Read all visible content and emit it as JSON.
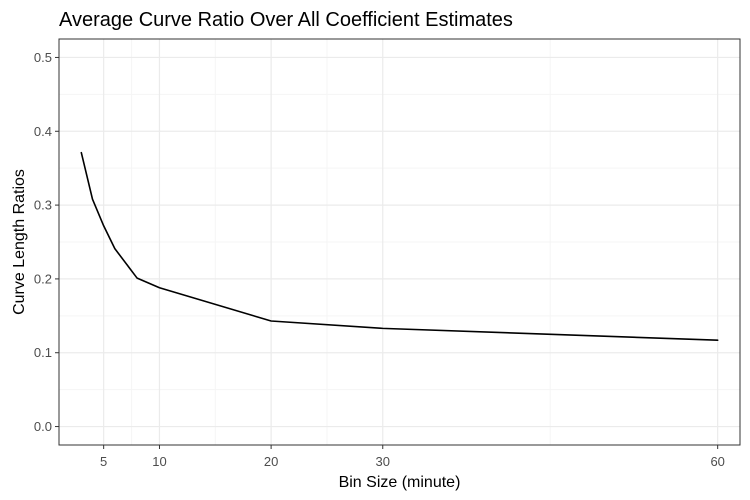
{
  "chart_data": {
    "type": "line",
    "title": "Average Curve Ratio Over All Coefficient Estimates",
    "xlabel": "Bin Size (minute)",
    "ylabel": "Curve Length Ratios",
    "xlim": [
      1,
      62
    ],
    "ylim": [
      -0.025,
      0.525
    ],
    "x_ticks": [
      5,
      10,
      20,
      30,
      60
    ],
    "x_tick_labels": [
      "5",
      "10",
      "20",
      "30",
      "60"
    ],
    "y_ticks": [
      0.0,
      0.1,
      0.2,
      0.3,
      0.4,
      0.5
    ],
    "y_tick_labels": [
      "0.0",
      "0.1",
      "0.2",
      "0.3",
      "0.4",
      "0.5"
    ],
    "grid": true,
    "legend": "none",
    "colors": {
      "line": "#000000",
      "grid_major": "#ebebeb",
      "grid_minor": "#f5f5f5",
      "panel_border": "#333333",
      "tick_label": "#4d4d4d"
    },
    "series": [
      {
        "x": [
          3,
          4,
          5,
          6,
          8,
          10,
          20,
          30,
          60
        ],
        "values": [
          0.371,
          0.308,
          0.272,
          0.241,
          0.201,
          0.188,
          0.143,
          0.133,
          0.117
        ]
      }
    ]
  }
}
